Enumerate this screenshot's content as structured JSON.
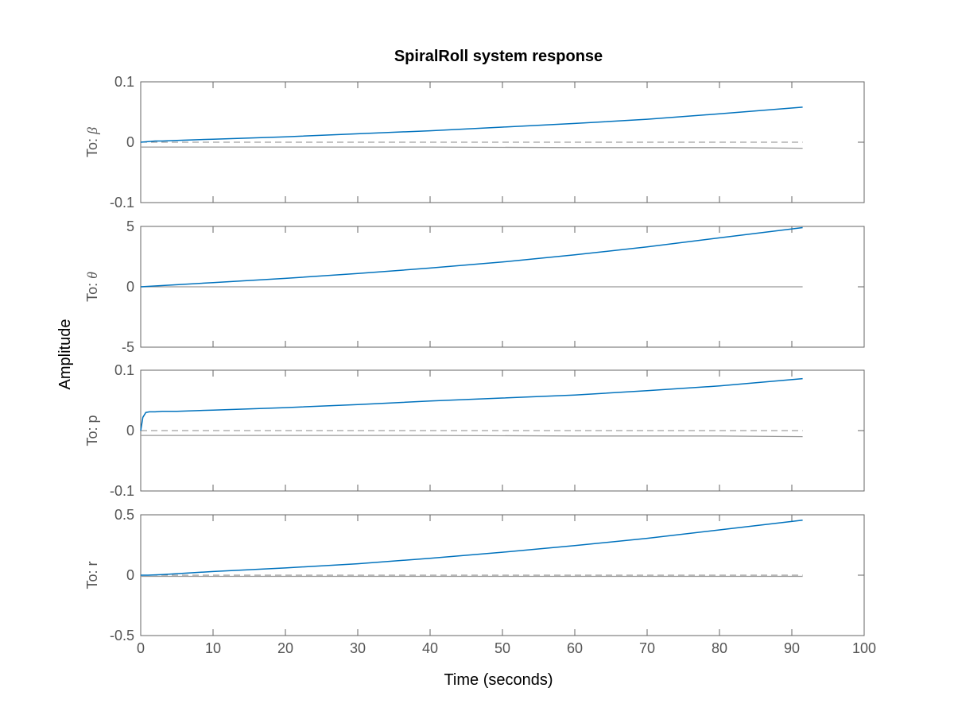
{
  "chart_data": {
    "type": "line",
    "title": "SpiralRoll system response",
    "xlabel": "Time (seconds)",
    "ylabel": "Amplitude",
    "xlim": [
      0,
      100
    ],
    "xticks": [
      "0",
      "10",
      "20",
      "30",
      "40",
      "50",
      "60",
      "70",
      "80",
      "90",
      "100"
    ],
    "grid": false,
    "colors": {
      "response": "#0072BD",
      "reference": "#999999",
      "axes": "#666666"
    },
    "subplots": [
      {
        "label_prefix": "To: ",
        "label_var": "β",
        "ylim": [
          -0.1,
          0.1
        ],
        "yticks": [
          "0.1",
          "0",
          "-0.1"
        ],
        "response": {
          "x": [
            0,
            1,
            2,
            3,
            5,
            10,
            20,
            30,
            40,
            50,
            60,
            70,
            80,
            91.5
          ],
          "y": [
            0,
            0.001,
            0.002,
            0.002,
            0.003,
            0.005,
            0.009,
            0.014,
            0.019,
            0.025,
            0.031,
            0.038,
            0.047,
            0.058
          ]
        },
        "reference": {
          "x": [
            0,
            20,
            40,
            60,
            80,
            91.5
          ],
          "y": [
            -0.008,
            -0.008,
            -0.008,
            -0.009,
            -0.009,
            -0.01
          ]
        },
        "zero_dashed": true
      },
      {
        "label_prefix": "To: ",
        "label_var": "θ",
        "ylim": [
          -5,
          5
        ],
        "yticks": [
          "5",
          "0",
          "-5"
        ],
        "response": {
          "x": [
            0,
            10,
            20,
            30,
            40,
            50,
            60,
            70,
            80,
            91.5
          ],
          "y": [
            0,
            0.35,
            0.7,
            1.1,
            1.55,
            2.05,
            2.65,
            3.3,
            4.05,
            4.9
          ]
        },
        "reference": {
          "x": [
            0,
            91.5
          ],
          "y": [
            0,
            0
          ]
        },
        "zero_dashed": false
      },
      {
        "label_prefix": "To: ",
        "label_var": "p",
        "ylim": [
          -0.1,
          0.1
        ],
        "yticks": [
          "0.1",
          "0",
          "-0.1"
        ],
        "response": {
          "x": [
            0,
            0.3,
            0.7,
            1.2,
            2,
            3,
            5,
            10,
            20,
            30,
            40,
            50,
            60,
            70,
            80,
            91.5
          ],
          "y": [
            0,
            0.022,
            0.03,
            0.031,
            0.031,
            0.032,
            0.032,
            0.034,
            0.038,
            0.043,
            0.049,
            0.054,
            0.059,
            0.066,
            0.074,
            0.086
          ]
        },
        "reference": {
          "x": [
            0,
            20,
            40,
            60,
            80,
            91.5
          ],
          "y": [
            -0.008,
            -0.008,
            -0.008,
            -0.009,
            -0.009,
            -0.01
          ]
        },
        "zero_dashed": true
      },
      {
        "label_prefix": "To: ",
        "label_var": "r",
        "ylim": [
          -0.5,
          0.5
        ],
        "yticks": [
          "0.5",
          "0",
          "-0.5"
        ],
        "response": {
          "x": [
            0,
            1,
            3,
            10,
            20,
            30,
            40,
            50,
            60,
            70,
            80,
            91.5
          ],
          "y": [
            0,
            0,
            0.005,
            0.03,
            0.06,
            0.095,
            0.14,
            0.19,
            0.245,
            0.305,
            0.375,
            0.455
          ]
        },
        "reference": {
          "x": [
            0,
            91.5
          ],
          "y": [
            -0.01,
            -0.01
          ]
        },
        "zero_dashed": true
      }
    ]
  }
}
